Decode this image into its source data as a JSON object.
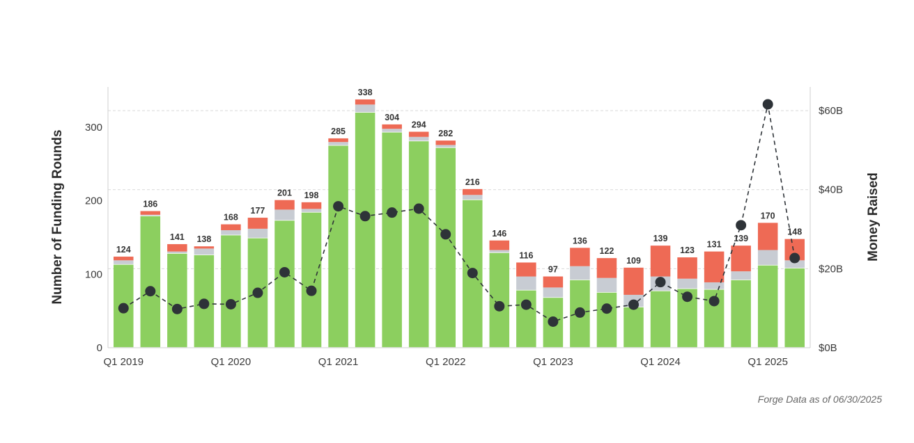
{
  "chart_data": {
    "type": "bar",
    "title": "",
    "ylabel": "Number of Funding Rounds",
    "y2label": "Money Raised",
    "ylim": [
      0,
      355
    ],
    "y2lim": [
      0,
      66
    ],
    "yticks": [
      "0",
      "100",
      "200",
      "300"
    ],
    "y2ticks": [
      "$0B",
      "$20B",
      "$40B",
      "$60B"
    ],
    "xtick_labels": [
      "Q1 2019",
      "Q1 2020",
      "Q1 2021",
      "Q1 2022",
      "Q1 2023",
      "Q1 2024",
      "Q1 2025"
    ],
    "categories": [
      "Q1 2019",
      "Q2 2019",
      "Q3 2019",
      "Q4 2019",
      "Q1 2020",
      "Q2 2020",
      "Q3 2020",
      "Q4 2020",
      "Q1 2021",
      "Q2 2021",
      "Q3 2021",
      "Q4 2021",
      "Q1 2022",
      "Q2 2022",
      "Q3 2022",
      "Q4 2022",
      "Q1 2023",
      "Q2 2023",
      "Q3 2023",
      "Q4 2023",
      "Q1 2024",
      "Q2 2024",
      "Q3 2024",
      "Q4 2024",
      "Q1 2025",
      "Q2 2025"
    ],
    "totals": [
      "124",
      "186",
      "141",
      "138",
      "168",
      "177",
      "201",
      "198",
      "285",
      "338",
      "304",
      "294",
      "282",
      "216",
      "146",
      "116",
      "97",
      "136",
      "122",
      "109",
      "139",
      "123",
      "131",
      "139",
      "170",
      "148"
    ],
    "series": [
      {
        "values": [
          113,
          179,
          128,
          126,
          153,
          149,
          173,
          184,
          275,
          320,
          293,
          281,
          272,
          201,
          129,
          78,
          68,
          92,
          75,
          55,
          77,
          80,
          79,
          92,
          112,
          108
        ]
      },
      {
        "values": [
          6,
          2,
          3,
          9,
          7,
          13,
          15,
          5,
          5,
          11,
          5,
          6,
          4,
          7,
          4,
          19,
          14,
          19,
          20,
          17,
          20,
          14,
          10,
          12,
          21,
          11
        ]
      },
      {
        "values": [
          5,
          5,
          10,
          3,
          8,
          15,
          13,
          9,
          5,
          7,
          6,
          7,
          6,
          8,
          13,
          19,
          15,
          25,
          27,
          37,
          42,
          29,
          42,
          35,
          37,
          29
        ]
      }
    ],
    "line": {
      "values": [
        10.0,
        14.3,
        9.8,
        11.1,
        11.0,
        13.9,
        19.1,
        14.4,
        35.8,
        33.3,
        34.2,
        35.2,
        28.7,
        18.9,
        10.5,
        10.9,
        6.6,
        8.9,
        9.9,
        10.9,
        16.6,
        12.9,
        11.8,
        31.0,
        61.6,
        22.7
      ],
      "style": "dashed"
    },
    "colors": {
      "green": "#8ccf5f",
      "gray": "#c8ccd3",
      "red": "#ee6a55",
      "line": "#2e3338",
      "grid": "#d9d9d9"
    },
    "grid": true,
    "source_note": "Forge Data as of 06/30/2025"
  }
}
